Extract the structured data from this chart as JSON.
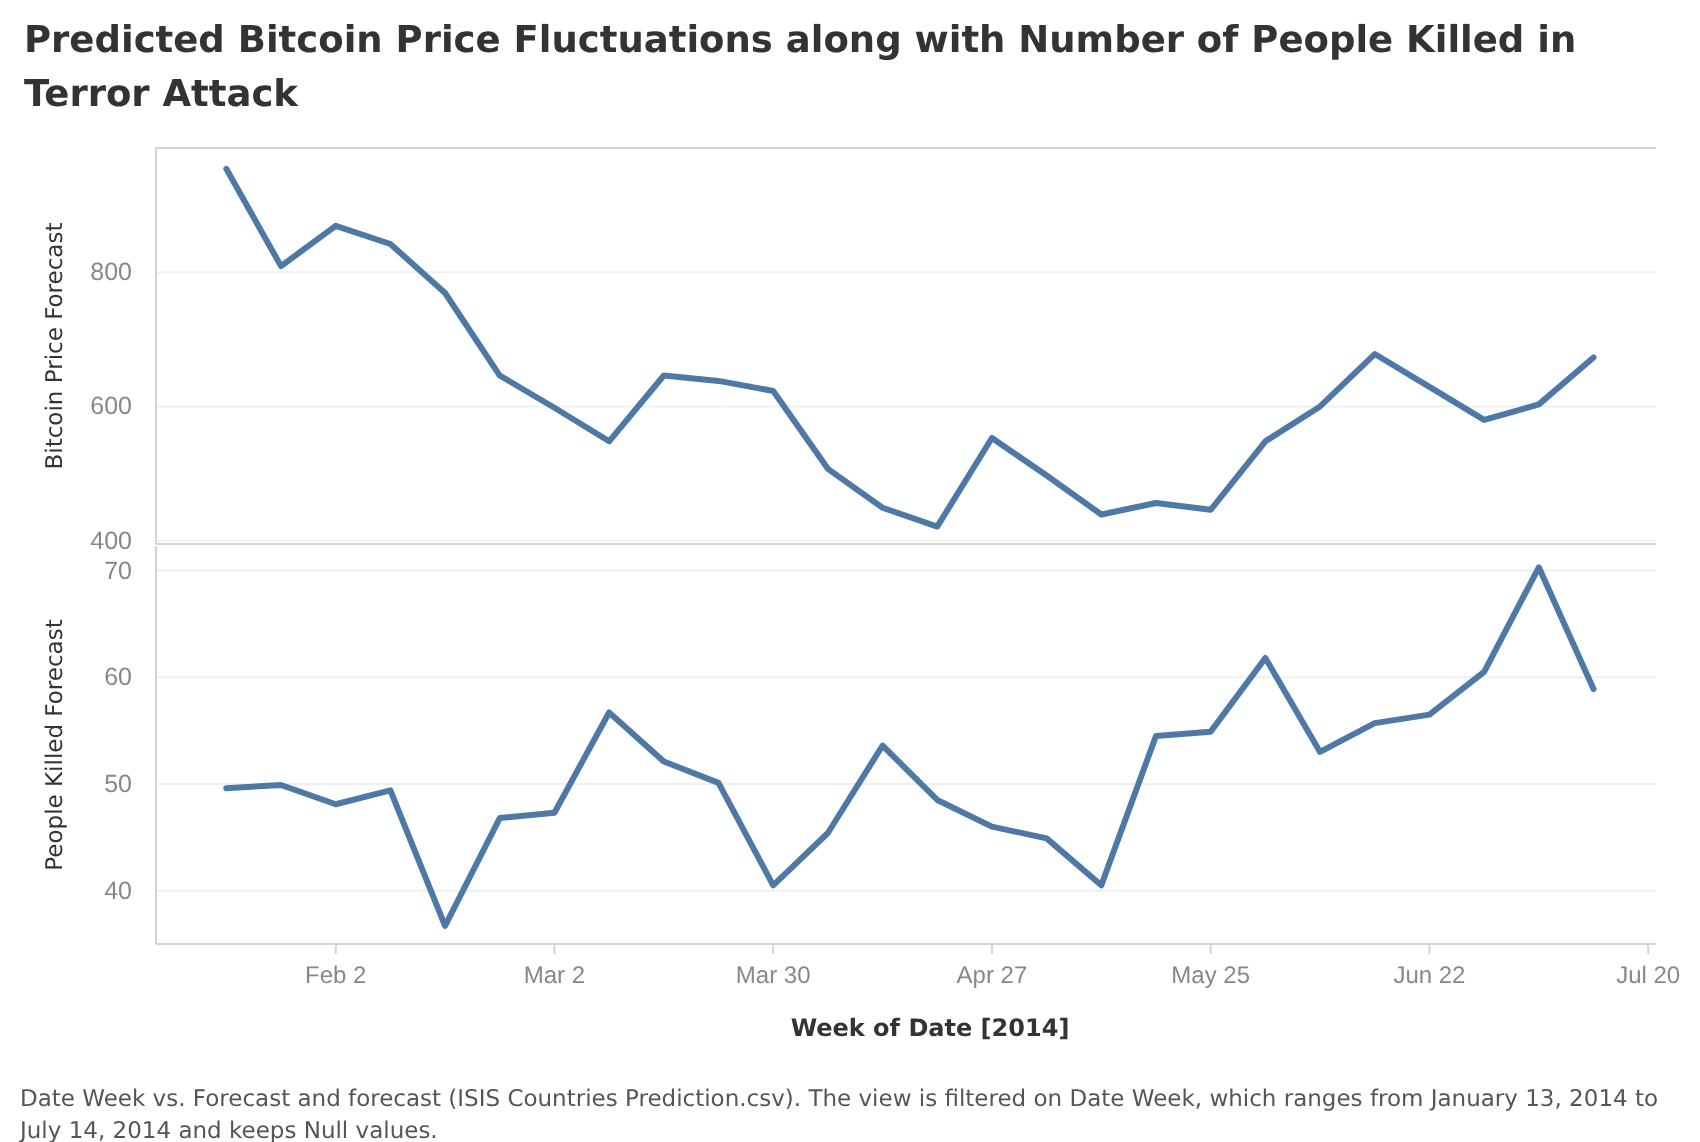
{
  "chart_data": [
    {
      "type": "line",
      "title": "Predicted Bitcoin Price Fluctuations along with Number of People Killed in Terror Attack",
      "ylabel": "Bitcoin Price Forecast",
      "x": [
        "2014-01-19",
        "2014-01-26",
        "2014-02-02",
        "2014-02-09",
        "2014-02-16",
        "2014-02-23",
        "2014-03-02",
        "2014-03-09",
        "2014-03-16",
        "2014-03-23",
        "2014-03-30",
        "2014-04-06",
        "2014-04-13",
        "2014-04-20",
        "2014-04-27",
        "2014-05-04",
        "2014-05-11",
        "2014-05-18",
        "2014-05-25",
        "2014-06-01",
        "2014-06-08",
        "2014-06-15",
        "2014-06-22",
        "2014-06-29",
        "2014-07-06",
        "2014-07-13"
      ],
      "series": [
        {
          "color": "#4e79a7",
          "values": [
            954,
            809,
            869,
            842,
            769,
            646,
            598,
            548,
            646,
            638,
            623,
            507,
            449,
            421,
            553,
            497,
            439,
            456,
            446,
            548,
            600,
            678,
            629,
            580,
            603,
            673
          ]
        }
      ],
      "xlim": [
        "2014-01-10",
        "2014-07-21"
      ],
      "ylim": [
        395,
        985
      ],
      "yticks": [
        400,
        600,
        800
      ],
      "grid": "y",
      "tick_labels": "y",
      "line_style": "solid",
      "marker": "none"
    },
    {
      "type": "line",
      "ylabel": "People Killed Forecast",
      "xlabel": "Week of Date [2014]",
      "x": [
        "2014-01-19",
        "2014-01-26",
        "2014-02-02",
        "2014-02-09",
        "2014-02-16",
        "2014-02-23",
        "2014-03-02",
        "2014-03-09",
        "2014-03-16",
        "2014-03-23",
        "2014-03-30",
        "2014-04-06",
        "2014-04-13",
        "2014-04-20",
        "2014-04-27",
        "2014-05-04",
        "2014-05-11",
        "2014-05-18",
        "2014-05-25",
        "2014-06-01",
        "2014-06-08",
        "2014-06-15",
        "2014-06-22",
        "2014-06-29",
        "2014-07-06",
        "2014-07-13"
      ],
      "series": [
        {
          "color": "#4e79a7",
          "values": [
            49.6,
            49.9,
            48.1,
            49.4,
            36.7,
            46.8,
            47.3,
            56.7,
            52.1,
            50.1,
            40.5,
            45.4,
            53.6,
            48.5,
            46.0,
            44.9,
            40.5,
            54.5,
            54.9,
            61.8,
            53.0,
            55.7,
            56.5,
            60.5,
            70.3,
            58.9
          ]
        }
      ],
      "xlim": [
        "2014-01-10",
        "2014-07-21"
      ],
      "ylim": [
        35,
        72.3
      ],
      "yticks": [
        40,
        50,
        60,
        70
      ],
      "xticks": [
        {
          "value": "2014-02-02",
          "label": "Feb 2"
        },
        {
          "value": "2014-03-02",
          "label": "Mar 2"
        },
        {
          "value": "2014-03-30",
          "label": "Mar 30"
        },
        {
          "value": "2014-04-27",
          "label": "Apr 27"
        },
        {
          "value": "2014-05-25",
          "label": "May 25"
        },
        {
          "value": "2014-06-22",
          "label": "Jun 22"
        },
        {
          "value": "2014-07-20",
          "label": "Jul 20"
        }
      ],
      "grid": "y",
      "line_style": "solid",
      "marker": "none",
      "annotations": [
        "Date Week vs. Forecast and forecast (ISIS Countries Prediction.csv). The view is filtered on Date Week, which ranges from January 13, 2014 to July 14, 2014 and keeps Null values."
      ]
    }
  ]
}
